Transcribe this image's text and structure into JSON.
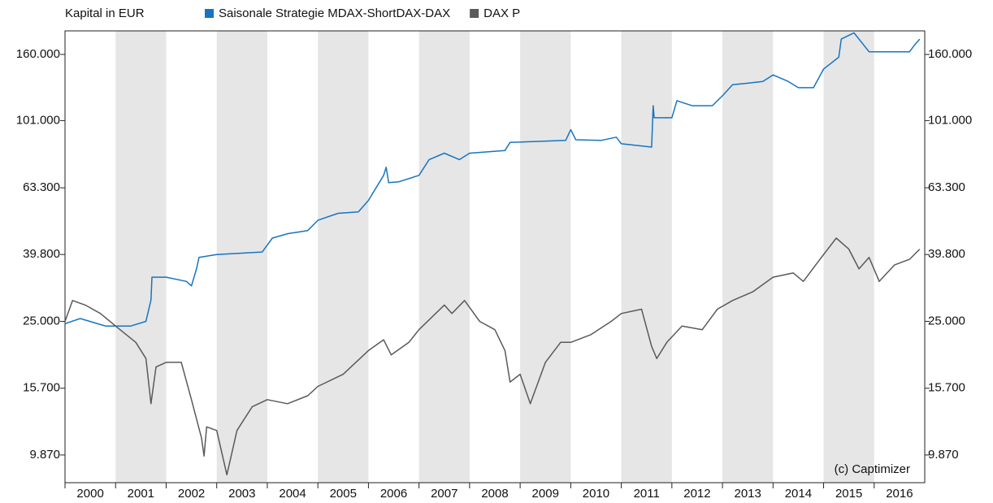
{
  "chart_data": {
    "type": "line",
    "y_label": "Kapital in EUR",
    "annotation": "(c) Captimizer",
    "log_y": true,
    "xlim": [
      2000,
      2017
    ],
    "xticks": [
      2000,
      2001,
      2002,
      2003,
      2004,
      2005,
      2006,
      2007,
      2008,
      2009,
      2010,
      2011,
      2012,
      2013,
      2014,
      2015,
      2016
    ],
    "ylim": [
      8140,
      188500
    ],
    "yticks": [
      {
        "value": 9870,
        "label": "9.870"
      },
      {
        "value": 15700,
        "label": "15.700"
      },
      {
        "value": 25000,
        "label": "25.000"
      },
      {
        "value": 39800,
        "label": "39.800"
      },
      {
        "value": 63300,
        "label": "63.300"
      },
      {
        "value": 101000,
        "label": "101.000"
      },
      {
        "value": 160000,
        "label": "160.000"
      }
    ],
    "series": [
      {
        "name": "Saisonale Strategie MDAX-ShortDAX-DAX",
        "color": "#1874c0",
        "x": [
          2000.0,
          2000.3,
          2000.8,
          2001.3,
          2001.6,
          2001.7,
          2001.72,
          2002.0,
          2002.4,
          2002.5,
          2002.6,
          2002.65,
          2003.0,
          2003.9,
          2004.1,
          2004.4,
          2004.8,
          2005.0,
          2005.4,
          2005.8,
          2006.0,
          2006.3,
          2006.35,
          2006.4,
          2006.6,
          2007.0,
          2007.2,
          2007.5,
          2007.8,
          2008.0,
          2008.7,
          2008.8,
          2009.9,
          2010.0,
          2010.1,
          2010.6,
          2010.9,
          2011.0,
          2011.6,
          2011.63,
          2011.65,
          2012.0,
          2012.1,
          2012.4,
          2012.8,
          2013.0,
          2013.2,
          2013.5,
          2013.8,
          2014.0,
          2014.3,
          2014.5,
          2014.8,
          2015.0,
          2015.3,
          2015.35,
          2015.6,
          2015.9,
          2016.7,
          2016.8,
          2016.9
        ],
        "values": [
          24600,
          25500,
          24200,
          24200,
          25000,
          29000,
          34000,
          34000,
          33000,
          32000,
          36000,
          39000,
          39800,
          40500,
          44600,
          46000,
          47000,
          50500,
          53000,
          53500,
          58000,
          69000,
          73000,
          65600,
          66000,
          69000,
          77000,
          80500,
          77000,
          80500,
          82000,
          86800,
          88000,
          94800,
          88400,
          88000,
          90000,
          86000,
          84000,
          112000,
          103000,
          103000,
          116000,
          112000,
          112000,
          120000,
          129600,
          131000,
          132600,
          138800,
          132600,
          127000,
          127000,
          144500,
          157000,
          178000,
          186000,
          163000,
          163000,
          171000,
          178000
        ]
      },
      {
        "name": "DAX P",
        "color": "#5a5a5a",
        "x": [
          2000.0,
          2000.15,
          2000.4,
          2000.7,
          2001.0,
          2001.4,
          2001.6,
          2001.7,
          2001.8,
          2002.0,
          2002.3,
          2002.5,
          2002.7,
          2002.75,
          2002.8,
          2003.0,
          2003.2,
          2003.4,
          2003.7,
          2004.0,
          2004.4,
          2004.8,
          2005.0,
          2005.5,
          2006.0,
          2006.3,
          2006.45,
          2006.8,
          2007.0,
          2007.5,
          2007.65,
          2007.9,
          2008.2,
          2008.5,
          2008.7,
          2008.8,
          2009.0,
          2009.2,
          2009.5,
          2009.8,
          2010.0,
          2010.4,
          2010.8,
          2011.0,
          2011.4,
          2011.6,
          2011.7,
          2011.9,
          2012.2,
          2012.6,
          2012.9,
          2013.2,
          2013.6,
          2014.0,
          2014.4,
          2014.6,
          2014.9,
          2015.25,
          2015.5,
          2015.7,
          2015.9,
          2016.1,
          2016.4,
          2016.7,
          2016.9
        ],
        "values": [
          25000,
          28900,
          28000,
          26400,
          24200,
          21600,
          19300,
          14100,
          18200,
          18800,
          18800,
          14500,
          11100,
          9800,
          12000,
          11700,
          8600,
          11700,
          13800,
          14500,
          14100,
          14900,
          15900,
          17300,
          20400,
          22000,
          19800,
          21600,
          23600,
          28000,
          26400,
          28900,
          25000,
          23600,
          20400,
          16400,
          17300,
          14100,
          18800,
          21600,
          21600,
          22800,
          25000,
          26400,
          27200,
          21000,
          19300,
          21600,
          24200,
          23600,
          27200,
          28900,
          30700,
          34000,
          35000,
          33000,
          38000,
          44600,
          41300,
          36000,
          39000,
          33000,
          37000,
          38500,
          41300
        ]
      }
    ]
  }
}
